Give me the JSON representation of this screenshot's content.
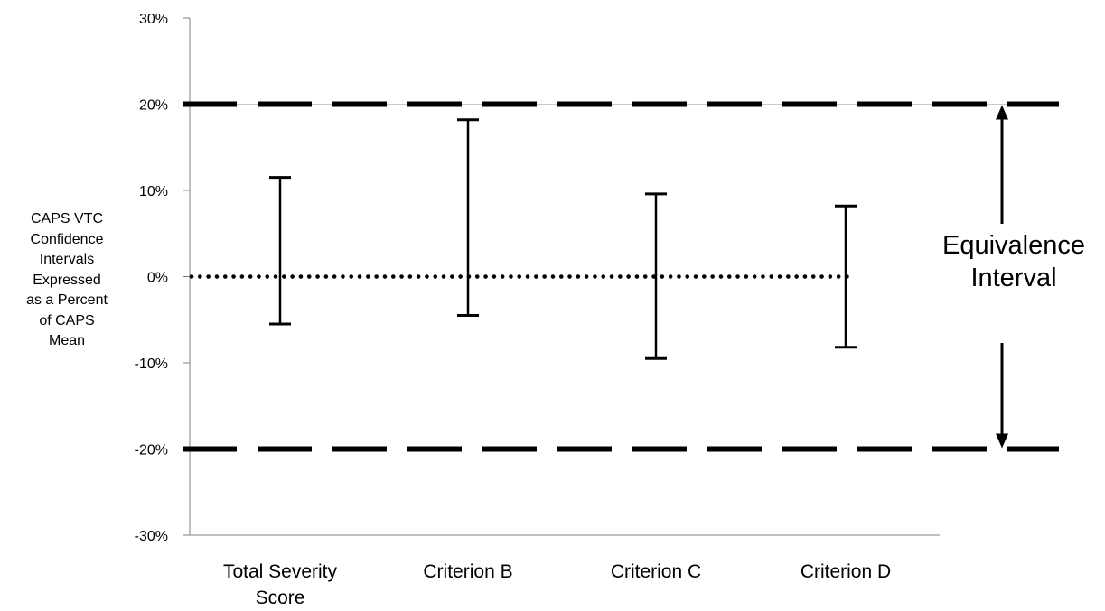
{
  "chart_data": {
    "type": "error_bar",
    "title": "",
    "ylabel_lines": [
      "CAPS VTC",
      "Confidence",
      "Intervals",
      "Expressed",
      "as a Percent",
      "of CAPS",
      "Mean"
    ],
    "ylim": [
      -30,
      30
    ],
    "yticks": [
      30,
      20,
      10,
      0,
      -10,
      -20,
      -30
    ],
    "ytick_labels": [
      "30%",
      "20%",
      "10%",
      "0%",
      "-10%",
      "-20%",
      "-30%"
    ],
    "categories": [
      {
        "lines": [
          "Total Severity",
          "Score"
        ]
      },
      {
        "lines": [
          "Criterion B"
        ]
      },
      {
        "lines": [
          "Criterion C"
        ]
      },
      {
        "lines": [
          "Criterion D"
        ]
      }
    ],
    "intervals": [
      {
        "category": "Total Severity Score",
        "lower": -5.5,
        "upper": 11.5
      },
      {
        "category": "Criterion B",
        "lower": -4.5,
        "upper": 18.2
      },
      {
        "category": "Criterion C",
        "lower": -9.5,
        "upper": 9.6
      },
      {
        "category": "Criterion D",
        "lower": -8.2,
        "upper": 8.2
      }
    ],
    "reference_lines": [
      {
        "value": 20,
        "style": "dashed"
      },
      {
        "value": -20,
        "style": "dashed"
      },
      {
        "value": 0,
        "style": "dotted"
      }
    ],
    "annotation": {
      "lines": [
        "Equivalence",
        "Interval"
      ],
      "from": -20,
      "to": 20
    },
    "grid": false,
    "legend": "none"
  }
}
